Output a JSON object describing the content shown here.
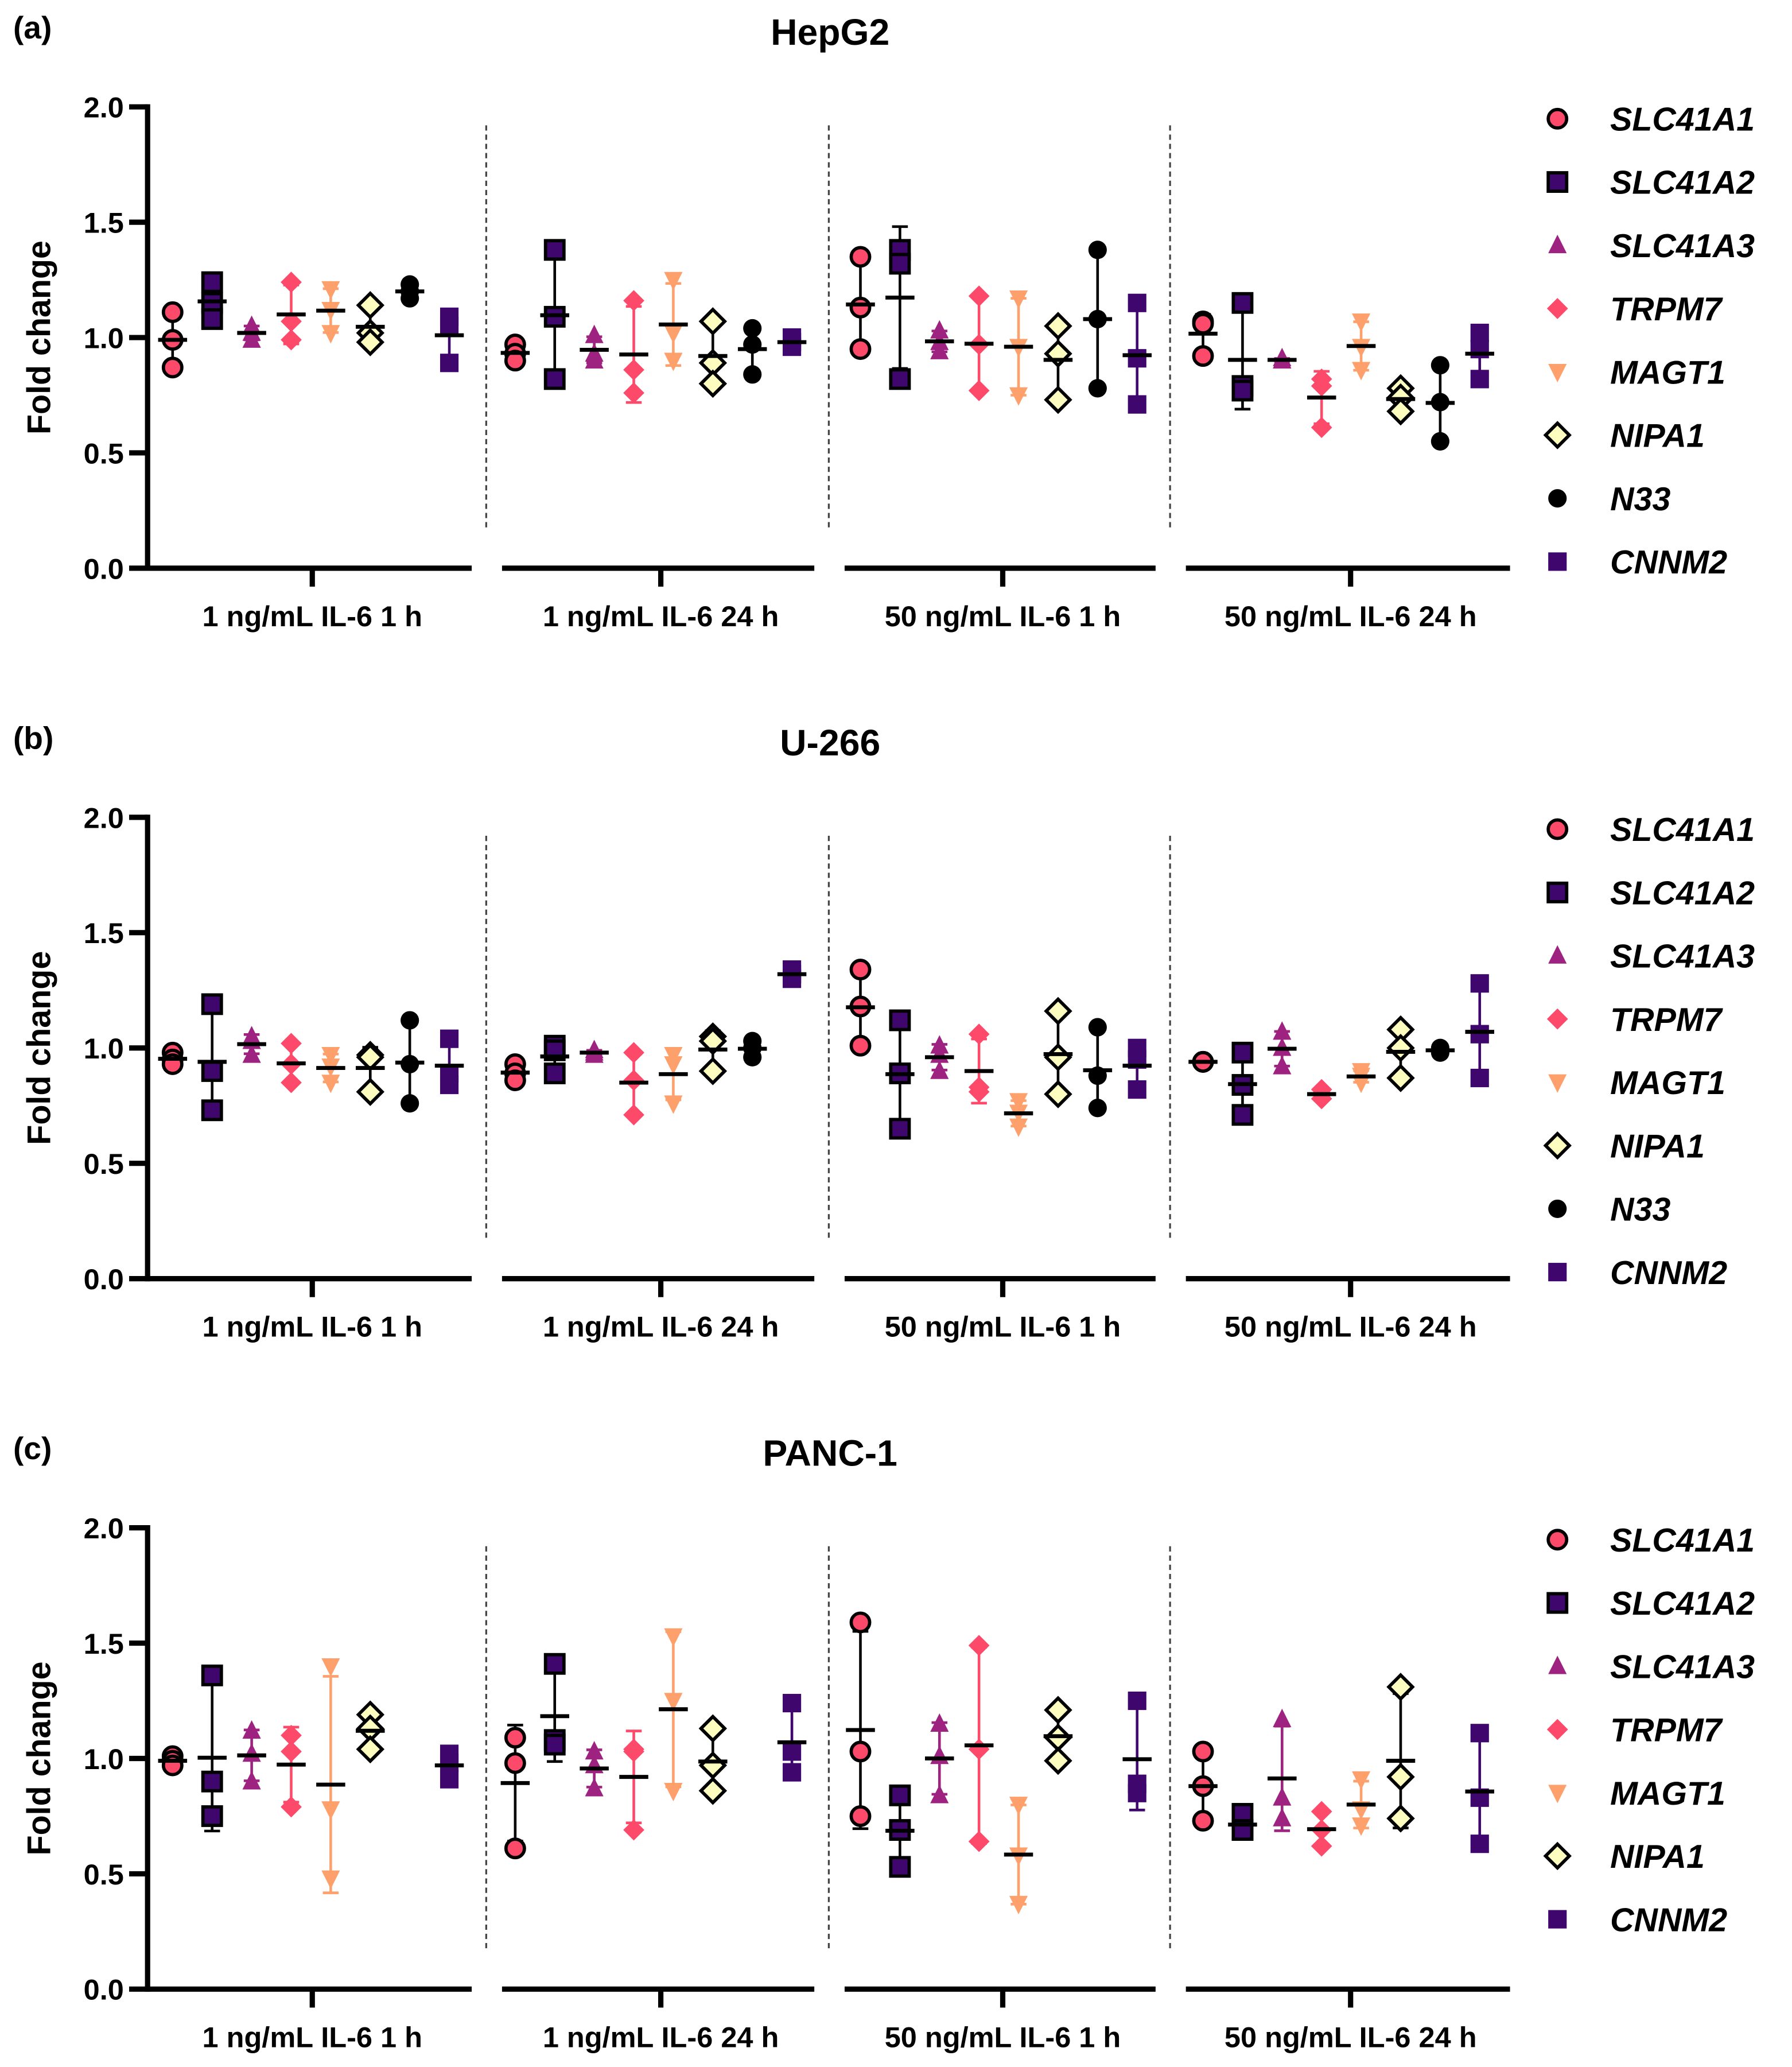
{
  "chart_data": [
    {
      "type": "scatter",
      "panel_label": "(a)",
      "title": "HepG2",
      "ylabel": "Fold change",
      "ylim": [
        0,
        2.0
      ],
      "yticks": [
        "0.0",
        "0.5",
        "1.0",
        "1.5",
        "2.0"
      ],
      "categories": [
        "1 ng/mL IL-6 1 h",
        "1 ng/mL IL-6 24 h",
        "50 ng/mL IL-6 1 h",
        "50 ng/mL IL-6 24 h"
      ],
      "series": [
        {
          "name": "SLC41A1",
          "values": [
            [
              1.11,
              0.99,
              0.87
            ],
            [
              0.97,
              0.93,
              0.9
            ],
            [
              1.35,
              1.13,
              0.95
            ],
            [
              1.07,
              1.06,
              0.92
            ]
          ]
        },
        {
          "name": "SLC41A2",
          "values": [
            [
              1.24,
              1.15,
              1.08
            ],
            [
              1.38,
              1.09,
              0.82
            ],
            [
              1.38,
              1.32,
              0.82
            ],
            [
              1.15,
              0.79,
              0.77
            ]
          ]
        },
        {
          "name": "SLC41A3",
          "values": [
            [
              1.05,
              1.02,
              0.99
            ],
            [
              1.01,
              0.93,
              0.9
            ],
            [
              1.03,
              0.98,
              0.94
            ],
            [
              0.91,
              0.9,
              0.9
            ]
          ]
        },
        {
          "name": "TRPM7",
          "values": [
            [
              1.24,
              1.07,
              0.99
            ],
            [
              1.16,
              0.86,
              0.76
            ],
            [
              1.18,
              0.97,
              0.77
            ],
            [
              0.82,
              0.79,
              0.61
            ]
          ]
        },
        {
          "name": "MAGT1",
          "values": [
            [
              1.21,
              1.12,
              1.02
            ],
            [
              1.25,
              1.02,
              0.9
            ],
            [
              1.17,
              0.96,
              0.75
            ],
            [
              1.07,
              0.96,
              0.86
            ]
          ]
        },
        {
          "name": "NIPA1",
          "values": [
            [
              1.14,
              1.02,
              0.98
            ],
            [
              1.07,
              0.89,
              0.8
            ],
            [
              1.05,
              0.93,
              0.73
            ],
            [
              0.78,
              0.74,
              0.68
            ]
          ]
        },
        {
          "name": "N33",
          "values": [
            [
              1.23,
              1.2,
              1.17
            ],
            [
              1.04,
              0.97,
              0.84
            ],
            [
              1.38,
              1.08,
              0.78
            ],
            [
              0.88,
              0.72,
              0.55
            ]
          ]
        },
        {
          "name": "CNNM2",
          "values": [
            [
              1.09,
              1.05,
              0.89
            ],
            [
              1.0,
              0.98,
              0.96
            ],
            [
              1.15,
              0.91,
              0.71
            ],
            [
              1.02,
              0.95,
              0.82
            ]
          ]
        }
      ]
    },
    {
      "type": "scatter",
      "panel_label": "(b)",
      "title": "U-266",
      "ylabel": "Fold change",
      "ylim": [
        0,
        2.0
      ],
      "yticks": [
        "0.0",
        "0.5",
        "1.0",
        "1.5",
        "2.0"
      ],
      "categories": [
        "1 ng/mL IL-6 1 h",
        "1 ng/mL IL-6 24 h",
        "50 ng/mL IL-6 1 h",
        "50 ng/mL IL-6 24 h"
      ],
      "series": [
        {
          "name": "SLC41A1",
          "values": [
            [
              0.98,
              0.95,
              0.93
            ],
            [
              0.93,
              0.89,
              0.86
            ],
            [
              1.34,
              1.18,
              1.01
            ],
            [
              0.94,
              0.94,
              0.94
            ]
          ]
        },
        {
          "name": "SLC41A2",
          "values": [
            [
              1.19,
              0.9,
              0.73
            ],
            [
              1.01,
              0.99,
              0.89
            ],
            [
              1.12,
              0.89,
              0.65
            ],
            [
              0.98,
              0.84,
              0.71
            ]
          ]
        },
        {
          "name": "SLC41A3",
          "values": [
            [
              1.05,
              1.03,
              0.97
            ],
            [
              0.99,
              0.98,
              0.97
            ],
            [
              1.01,
              0.97,
              0.9
            ],
            [
              1.07,
              1.0,
              0.92
            ]
          ]
        },
        {
          "name": "TRPM7",
          "values": [
            [
              1.02,
              0.93,
              0.85
            ],
            [
              0.98,
              0.86,
              0.71
            ],
            [
              1.06,
              0.83,
              0.81
            ],
            [
              0.82,
              0.8,
              0.78
            ]
          ]
        },
        {
          "name": "MAGT1",
          "values": [
            [
              0.97,
              0.92,
              0.85
            ],
            [
              0.97,
              0.93,
              0.76
            ],
            [
              0.77,
              0.72,
              0.66
            ],
            [
              0.9,
              0.88,
              0.85
            ]
          ]
        },
        {
          "name": "NIPA1",
          "values": [
            [
              0.97,
              0.96,
              0.81
            ],
            [
              1.05,
              1.03,
              0.9
            ],
            [
              1.16,
              0.96,
              0.8
            ],
            [
              1.08,
              1.0,
              0.87
            ]
          ]
        },
        {
          "name": "N33",
          "values": [
            [
              1.12,
              0.93,
              0.76
            ],
            [
              1.03,
              1.0,
              0.96
            ],
            [
              1.09,
              0.88,
              0.74
            ],
            [
              1.0,
              0.99,
              0.98
            ]
          ]
        },
        {
          "name": "CNNM2",
          "values": [
            [
              1.04,
              0.89,
              0.84
            ],
            [
              1.34,
              1.32,
              1.3
            ],
            [
              1.0,
              0.95,
              0.82
            ],
            [
              1.28,
              1.06,
              0.87
            ]
          ]
        }
      ]
    },
    {
      "type": "scatter",
      "panel_label": "(c)",
      "title": "PANC-1",
      "ylabel": "Fold change",
      "ylim": [
        0,
        2.0
      ],
      "yticks": [
        "0.0",
        "0.5",
        "1.0",
        "1.5",
        "2.0"
      ],
      "categories": [
        "1 ng/mL IL-6 1 h",
        "1 ng/mL IL-6 24 h",
        "50 ng/mL IL-6 1 h",
        "50 ng/mL IL-6 24 h"
      ],
      "series": [
        {
          "name": "SLC41A1",
          "values": [
            [
              1.01,
              0.99,
              0.97
            ],
            [
              1.09,
              0.98,
              0.61
            ],
            [
              1.59,
              1.03,
              0.75
            ],
            [
              1.03,
              0.88,
              0.73
            ]
          ]
        },
        {
          "name": "SLC41A2",
          "values": [
            [
              1.36,
              0.9,
              0.75
            ],
            [
              1.41,
              1.08,
              1.06
            ],
            [
              0.84,
              0.69,
              0.53
            ],
            [
              0.76,
              0.69,
              0.69
            ]
          ]
        },
        {
          "name": "SLC41A3",
          "values": [
            [
              1.12,
              1.02,
              0.9
            ],
            [
              1.03,
              0.97,
              0.87
            ],
            [
              1.15,
              1.01,
              0.84
            ],
            [
              1.17,
              0.83,
              0.74
            ]
          ]
        },
        {
          "name": "TRPM7",
          "values": [
            [
              1.1,
              1.03,
              0.79
            ],
            [
              1.04,
              1.03,
              0.69
            ],
            [
              1.49,
              1.04,
              0.64
            ],
            [
              0.77,
              0.69,
              0.62
            ]
          ]
        },
        {
          "name": "MAGT1",
          "values": [
            [
              1.4,
              0.78,
              0.48
            ],
            [
              1.53,
              1.25,
              0.86
            ],
            [
              0.8,
              0.58,
              0.37
            ],
            [
              0.91,
              0.78,
              0.71
            ]
          ]
        },
        {
          "name": "NIPA1",
          "values": [
            [
              1.19,
              1.13,
              1.04
            ],
            [
              1.13,
              0.97,
              0.86
            ],
            [
              1.21,
              1.09,
              0.99
            ],
            [
              1.31,
              0.92,
              0.74
            ]
          ]
        },
        {
          "name": "CNNM2",
          "values": [
            [
              1.02,
              0.98,
              0.91
            ],
            [
              1.24,
              1.03,
              0.94
            ],
            [
              1.25,
              0.89,
              0.85
            ],
            [
              1.11,
              0.83,
              0.63
            ]
          ]
        }
      ]
    }
  ],
  "styles": {
    "SLC41A1": {
      "marker": "circle",
      "fill": "#FE4A6A",
      "stroke": "#000000",
      "bar": "#000000"
    },
    "SLC41A2": {
      "marker": "square",
      "fill": "#3F066D",
      "stroke": "#000000",
      "bar": "#000000"
    },
    "SLC41A3": {
      "marker": "triangle-up",
      "fill": "#9E2381",
      "stroke": "none",
      "bar": "#9E2381"
    },
    "TRPM7": {
      "marker": "diamond",
      "fill": "#FE4A6A",
      "stroke": "none",
      "bar": "#FE4A6A"
    },
    "MAGT1": {
      "marker": "triangle-down",
      "fill": "#FEA06C",
      "stroke": "none",
      "bar": "#FEA06C"
    },
    "NIPA1": {
      "marker": "diamond",
      "fill": "#FCFDBF",
      "stroke": "#000000",
      "bar": "#000000"
    },
    "N33": {
      "marker": "circle",
      "fill": "#000000",
      "stroke": "none",
      "bar": "#000000"
    },
    "CNNM2": {
      "marker": "square",
      "fill": "#3F066D",
      "stroke": "none",
      "bar": "#3F066D"
    }
  }
}
